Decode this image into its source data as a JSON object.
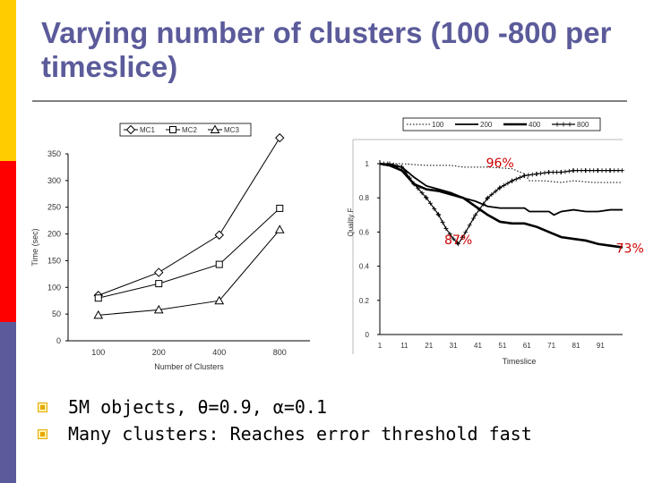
{
  "title": "Varying number of clusters (100 -800 per timeslice)",
  "title_color": "#5b5b9b",
  "sidebar_colors": [
    "#ffcc00",
    "#ff0000",
    "#5b5b9b"
  ],
  "bullets": [
    "5M objects, θ=0.9, α=0.1",
    "Many clusters: Reaches error threshold fast"
  ],
  "chart_data": [
    {
      "type": "line",
      "xlabel": "Number of Clusters",
      "ylabel": "Time (sec)",
      "categories": [
        "100",
        "200",
        "400",
        "800"
      ],
      "ylim": [
        0,
        350
      ],
      "yticks": [
        0,
        50,
        100,
        150,
        200,
        250,
        300,
        350
      ],
      "legend_position": "top",
      "series": [
        {
          "name": "MC1",
          "marker": "diamond",
          "values": [
            85,
            128,
            198,
            380
          ]
        },
        {
          "name": "MC2",
          "marker": "square",
          "values": [
            80,
            107,
            143,
            248
          ]
        },
        {
          "name": "MC3",
          "marker": "triangle",
          "values": [
            48,
            58,
            75,
            208
          ]
        }
      ]
    },
    {
      "type": "line",
      "xlabel": "Timeslice",
      "ylabel": "Quality F",
      "x_tick_labels": [
        "1",
        "11",
        "21",
        "31",
        "41",
        "51",
        "61",
        "71",
        "81",
        "91"
      ],
      "xlim": [
        1,
        100
      ],
      "ylim": [
        0,
        1
      ],
      "yticks": [
        0,
        0.2,
        0.4,
        0.6,
        0.8,
        1
      ],
      "ytick_labels": [
        "0",
        "0.2",
        "0.4",
        "0.6",
        "0.8",
        "1"
      ],
      "legend_position": "top",
      "annotations": [
        {
          "text": "96%",
          "x": 50,
          "y": 0.98
        },
        {
          "text": "87%",
          "x": 33,
          "y": 0.53
        },
        {
          "text": "73%",
          "x": 103,
          "y": 0.48
        }
      ],
      "series": [
        {
          "name": "100",
          "style": "dotted",
          "x": [
            1,
            10,
            20,
            30,
            35,
            45,
            55,
            60,
            62,
            68,
            75,
            80,
            88,
            92,
            95,
            100
          ],
          "values": [
            1,
            1,
            0.99,
            0.99,
            0.98,
            0.98,
            0.97,
            0.94,
            0.9,
            0.9,
            0.89,
            0.9,
            0.89,
            0.89,
            0.89,
            0.89
          ]
        },
        {
          "name": "200",
          "style": "solid",
          "x": [
            1,
            5,
            10,
            15,
            20,
            25,
            30,
            35,
            40,
            45,
            50,
            55,
            60,
            62,
            65,
            70,
            72,
            75,
            80,
            85,
            90,
            95,
            100
          ],
          "values": [
            1,
            0.99,
            0.98,
            0.92,
            0.87,
            0.85,
            0.83,
            0.8,
            0.78,
            0.75,
            0.74,
            0.74,
            0.74,
            0.72,
            0.72,
            0.72,
            0.7,
            0.72,
            0.73,
            0.72,
            0.72,
            0.73,
            0.73
          ]
        },
        {
          "name": "400",
          "style": "thick",
          "x": [
            1,
            5,
            10,
            15,
            20,
            25,
            30,
            35,
            40,
            45,
            50,
            55,
            60,
            65,
            70,
            75,
            80,
            85,
            90,
            95,
            100
          ],
          "values": [
            1,
            0.99,
            0.96,
            0.88,
            0.85,
            0.84,
            0.82,
            0.8,
            0.75,
            0.7,
            0.66,
            0.65,
            0.65,
            0.63,
            0.6,
            0.57,
            0.56,
            0.55,
            0.53,
            0.52,
            0.51
          ]
        },
        {
          "name": "800",
          "style": "plus",
          "x": [
            1,
            5,
            10,
            15,
            20,
            25,
            28,
            31,
            33,
            36,
            40,
            45,
            50,
            55,
            60,
            65,
            70,
            75,
            80,
            85,
            90,
            95,
            100
          ],
          "values": [
            1,
            1,
            0.98,
            0.88,
            0.8,
            0.7,
            0.62,
            0.56,
            0.53,
            0.6,
            0.7,
            0.8,
            0.86,
            0.9,
            0.93,
            0.94,
            0.95,
            0.95,
            0.96,
            0.96,
            0.96,
            0.96,
            0.96
          ]
        }
      ]
    }
  ]
}
